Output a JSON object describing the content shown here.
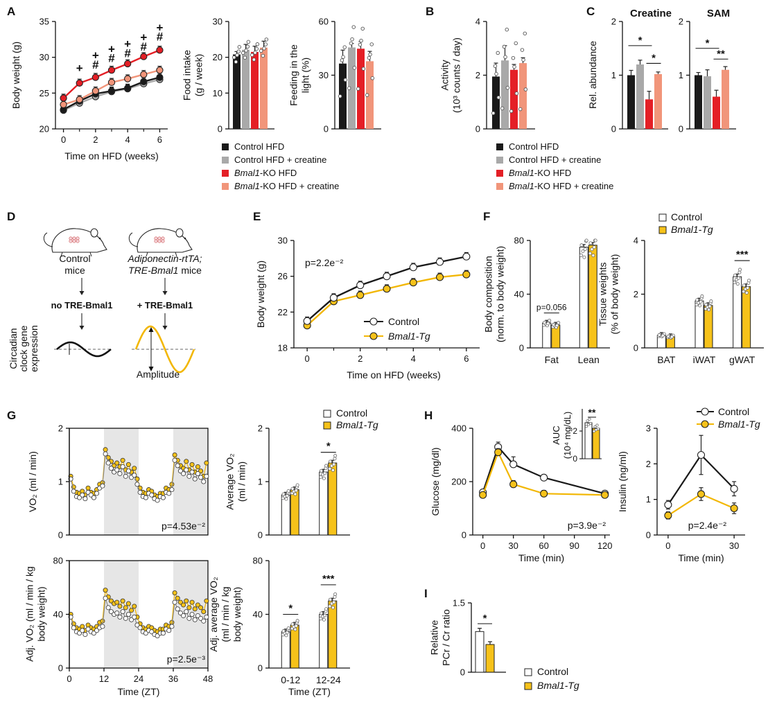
{
  "colors": {
    "control_hfd": "#1a1a1a",
    "control_creatine": "#a9a9a9",
    "ko_hfd": "#e41f26",
    "ko_creatine": "#f1957a",
    "control": "#ffffff",
    "tg": "#f6c21a",
    "tg_line": "#f2b705",
    "shade": "#e6e6e6"
  },
  "panels": {
    "a": "A",
    "b": "B",
    "c": "C",
    "d": "D",
    "e": "E",
    "f": "F",
    "g": "G",
    "h": "H",
    "i": "I"
  },
  "legend_creatine": [
    {
      "label": "Control HFD",
      "italic": "",
      "rest": "Control HFD",
      "color": "control_hfd"
    },
    {
      "label": "Control HFD + creatine",
      "italic": "",
      "rest": "Control HFD + creatine",
      "color": "control_creatine"
    },
    {
      "label": "Bmal1-KO HFD",
      "italic": "Bmal1",
      "rest": "-KO HFD",
      "color": "ko_hfd"
    },
    {
      "label": "Bmal1-KO HFD + creatine",
      "italic": "Bmal1",
      "rest": "-KO HFD + creatine",
      "color": "ko_creatine"
    }
  ],
  "legend_tg": {
    "control": "Control",
    "tg": "Bmal1-Tg"
  },
  "diagram": {
    "left_caption": [
      "Control",
      "mice"
    ],
    "right_caption_1": "Adiponectin-rtTA;",
    "right_caption_2a": "TRE-Bmal1",
    "right_caption_2b": " mice",
    "no_label": "no TRE-Bmal1",
    "plus_label": "+ TRE-Bmal1",
    "y_label": [
      "Circadian",
      "clock gene",
      "expression"
    ],
    "amplitude": "Amplitude"
  },
  "chart_data": [
    {
      "id": "A1",
      "type": "line",
      "title": "",
      "xlabel": "Time on HFD (weeks)",
      "ylabel": "Body weight (g)",
      "x": [
        0,
        1,
        2,
        3,
        4,
        5,
        6
      ],
      "xticks": [
        0,
        2,
        4,
        6
      ],
      "yticks": [
        20,
        25,
        30,
        35
      ],
      "ylim": [
        20,
        35
      ],
      "series": [
        {
          "name": "Control HFD",
          "color": "control_hfd",
          "values": [
            22.7,
            23.9,
            24.9,
            25.3,
            25.7,
            26.6,
            27.2
          ]
        },
        {
          "name": "Control HFD + creatine",
          "color": "control_creatine",
          "values": [
            22.6,
            23.6,
            24.5,
            25.2,
            25.6,
            26.3,
            26.9
          ]
        },
        {
          "name": "Bmal1-KO HFD",
          "color": "ko_hfd",
          "values": [
            24.3,
            26.4,
            27.2,
            28.2,
            29.1,
            30.1,
            31.0
          ]
        },
        {
          "name": "Bmal1-KO HFD + creatine",
          "color": "ko_creatine",
          "values": [
            23.4,
            24.1,
            25.3,
            26.5,
            27.0,
            27.6,
            28.2
          ]
        }
      ],
      "annotations": [
        {
          "x": 1,
          "y": 28.5,
          "text": "+"
        },
        {
          "x": 2,
          "y": 30.3,
          "text": "+"
        },
        {
          "x": 2,
          "y": 29.0,
          "text": "#"
        },
        {
          "x": 3,
          "y": 31.2,
          "text": "+"
        },
        {
          "x": 3,
          "y": 29.9,
          "text": "#"
        },
        {
          "x": 4,
          "y": 31.9,
          "text": "+"
        },
        {
          "x": 4,
          "y": 30.6,
          "text": "#"
        },
        {
          "x": 5,
          "y": 32.8,
          "text": "+"
        },
        {
          "x": 5,
          "y": 31.5,
          "text": "#"
        },
        {
          "x": 6,
          "y": 34.2,
          "text": "+"
        },
        {
          "x": 6,
          "y": 32.9,
          "text": "#"
        }
      ]
    },
    {
      "id": "A2",
      "type": "bar",
      "ylabel": [
        "Food intake",
        "(g / week)"
      ],
      "categories": [
        "Control HFD",
        "Control HFD + creatine",
        "Bmal1-KO HFD",
        "Bmal1-KO HFD + creatine"
      ],
      "values": [
        20.8,
        22.1,
        21.5,
        22.7
      ],
      "errors": [
        0.8,
        1.5,
        1.6,
        1.8
      ],
      "yticks": [
        0,
        10,
        20,
        30
      ],
      "ylim": [
        0,
        30
      ]
    },
    {
      "id": "A3",
      "type": "bar",
      "ylabel": [
        "Feeding in the",
        "light (%)"
      ],
      "categories": [
        "Control HFD",
        "Control HFD + creatine",
        "Bmal1-KO HFD",
        "Bmal1-KO HFD + creatine"
      ],
      "values": [
        36.5,
        45.5,
        44.8,
        37.8
      ],
      "errors": [
        7.5,
        2.2,
        4.0,
        5.5
      ],
      "yticks": [
        0,
        30,
        60
      ],
      "ylim": [
        0,
        60
      ]
    },
    {
      "id": "B",
      "type": "bar",
      "ylabel": [
        "Activity",
        "(10³ counts / day)"
      ],
      "categories": [
        "Control HFD",
        "Control HFD + creatine",
        "Bmal1-KO HFD",
        "Bmal1-KO HFD + creatine"
      ],
      "values": [
        1.95,
        2.55,
        2.2,
        2.45
      ],
      "errors": [
        0.5,
        0.55,
        0.2,
        0.2
      ],
      "yticks": [
        0,
        2,
        4
      ],
      "ylim": [
        0,
        4
      ]
    },
    {
      "id": "C1",
      "type": "bar",
      "title": "Creatine",
      "ylabel": "Rel. abundance",
      "categories": [
        "Control HFD",
        "Control HFD + creatine",
        "Bmal1-KO HFD",
        "Bmal1-KO HFD + creatine"
      ],
      "values": [
        1.0,
        1.2,
        0.55,
        1.02
      ],
      "errors": [
        0.09,
        0.08,
        0.15,
        0.04
      ],
      "yticks": [
        0,
        1,
        2
      ],
      "ylim": [
        0,
        2
      ],
      "brackets": [
        {
          "from": 0,
          "to": 2,
          "y": 1.55,
          "text": "*"
        },
        {
          "from": 2,
          "to": 3,
          "y": 1.22,
          "text": "*"
        }
      ]
    },
    {
      "id": "C2",
      "type": "bar",
      "title": "SAM",
      "categories": [
        "Control HFD",
        "Control HFD + creatine",
        "Bmal1-KO HFD",
        "Bmal1-KO HFD + creatine"
      ],
      "values": [
        1.0,
        0.98,
        0.6,
        1.1
      ],
      "errors": [
        0.05,
        0.12,
        0.12,
        0.06
      ],
      "yticks": [
        0,
        1,
        2
      ],
      "ylim": [
        0,
        2
      ],
      "brackets": [
        {
          "from": 0,
          "to": 2,
          "y": 1.5,
          "text": "*"
        },
        {
          "from": 2,
          "to": 3,
          "y": 1.3,
          "text": "**"
        }
      ]
    },
    {
      "id": "E",
      "type": "line",
      "xlabel": "Time on HFD (weeks)",
      "ylabel": "Body weight (g)",
      "x": [
        0,
        1,
        2,
        3,
        4,
        5,
        6
      ],
      "xticks": [
        0,
        2,
        4,
        6
      ],
      "yticks": [
        18,
        22,
        26,
        30
      ],
      "ylim": [
        18,
        30
      ],
      "pvalue": "p=2.2e⁻²",
      "series": [
        {
          "name": "Control",
          "color": "control",
          "values": [
            21.0,
            23.6,
            25.0,
            26.0,
            27.0,
            27.6,
            28.2
          ]
        },
        {
          "name": "Bmal1-Tg",
          "color": "tg",
          "values": [
            20.5,
            23.2,
            23.9,
            24.6,
            25.3,
            25.9,
            26.2
          ]
        }
      ]
    },
    {
      "id": "F1",
      "type": "bar",
      "ylabel": [
        "Body composition",
        "(norm. to body weight)"
      ],
      "categories": [
        "Fat",
        "Lean"
      ],
      "series": [
        {
          "name": "Control",
          "values": [
            18.5,
            75.0
          ]
        },
        {
          "name": "Bmal1-Tg",
          "values": [
            17.0,
            76.5
          ]
        }
      ],
      "yticks": [
        0,
        40,
        80
      ],
      "ylim": [
        0,
        80
      ],
      "brackets": [
        {
          "group": 0,
          "y": 26,
          "text": "p=0.056"
        }
      ]
    },
    {
      "id": "F2",
      "type": "bar",
      "ylabel": [
        "Tissue weights",
        "(% of body weight)"
      ],
      "categories": [
        "BAT",
        "iWAT",
        "gWAT"
      ],
      "series": [
        {
          "name": "Control",
          "values": [
            0.47,
            1.75,
            2.65
          ]
        },
        {
          "name": "Bmal1-Tg",
          "values": [
            0.42,
            1.58,
            2.28
          ]
        }
      ],
      "yticks": [
        0,
        2,
        4
      ],
      "ylim": [
        0,
        4
      ],
      "brackets": [
        {
          "group": 2,
          "y": 3.25,
          "text": "***"
        }
      ]
    },
    {
      "id": "G1",
      "type": "line",
      "ylabel": "VO₂ (ml / min)",
      "xlim": [
        0,
        48
      ],
      "yticks": [
        0,
        1,
        2
      ],
      "ylim": [
        0,
        2
      ],
      "pvalue": "p=4.53e⁻²",
      "dark_periods": [
        [
          12,
          24
        ],
        [
          36,
          48
        ]
      ],
      "x_step": 1,
      "series": [
        {
          "name": "Control",
          "color": "control",
          "values": [
            1.05,
            0.82,
            0.72,
            0.7,
            0.75,
            0.68,
            0.8,
            0.75,
            0.7,
            0.78,
            0.88,
            0.92,
            1.52,
            1.35,
            1.25,
            1.18,
            1.22,
            1.15,
            1.28,
            1.1,
            1.2,
            1.08,
            1.12,
            0.95,
            0.8,
            0.72,
            0.7,
            0.78,
            0.75,
            0.68,
            0.65,
            0.72,
            0.7,
            0.8,
            0.78,
            0.85,
            1.4,
            1.3,
            1.2,
            1.15,
            1.22,
            1.1,
            1.18,
            1.05,
            1.15,
            1.08,
            1.0,
            1.1
          ]
        },
        {
          "name": "Bmal1-Tg",
          "color": "tg",
          "values": [
            1.1,
            0.9,
            0.8,
            0.78,
            0.82,
            0.75,
            0.88,
            0.8,
            0.78,
            0.85,
            0.95,
            0.98,
            1.6,
            1.45,
            1.38,
            1.3,
            1.35,
            1.28,
            1.4,
            1.22,
            1.32,
            1.18,
            1.25,
            1.05,
            0.88,
            0.8,
            0.78,
            0.85,
            0.82,
            0.75,
            0.72,
            0.78,
            0.78,
            0.88,
            0.85,
            0.95,
            1.5,
            1.4,
            1.3,
            1.25,
            1.38,
            1.22,
            1.32,
            1.18,
            1.28,
            1.2,
            1.1,
            1.35
          ]
        }
      ]
    },
    {
      "id": "G2",
      "type": "bar",
      "ylabel": [
        "Average VO₂",
        "(ml / min)"
      ],
      "categories": [
        "0-12",
        "12-24"
      ],
      "series": [
        {
          "name": "Control",
          "values": [
            0.75,
            1.18
          ]
        },
        {
          "name": "Bmal1-Tg",
          "values": [
            0.85,
            1.35
          ]
        }
      ],
      "yticks": [
        0,
        1,
        2
      ],
      "ylim": [
        0,
        2
      ],
      "brackets": [
        {
          "group": 1,
          "y": 1.55,
          "text": "*"
        }
      ]
    },
    {
      "id": "G3",
      "type": "line",
      "xlabel": "Time (ZT)",
      "ylabel": [
        "Adj. VO₂ (ml / min / kg",
        "body weight)"
      ],
      "xticks": [
        0,
        12,
        24,
        36,
        48
      ],
      "xlim": [
        0,
        48
      ],
      "yticks": [
        0,
        40,
        80
      ],
      "ylim": [
        0,
        80
      ],
      "pvalue": "p=2.5e⁻³",
      "dark_periods": [
        [
          12,
          24
        ],
        [
          36,
          48
        ]
      ],
      "x_step": 1,
      "series": [
        {
          "name": "Control",
          "color": "control",
          "values": [
            38,
            30,
            27,
            26,
            28,
            25,
            29,
            27,
            26,
            28,
            30,
            31,
            52,
            45,
            42,
            40,
            41,
            38,
            42,
            37,
            40,
            36,
            38,
            32,
            30,
            27,
            26,
            28,
            27,
            25,
            24,
            26,
            26,
            29,
            28,
            31,
            49,
            44,
            41,
            39,
            42,
            37,
            40,
            36,
            39,
            37,
            35,
            38
          ]
        },
        {
          "name": "Bmal1-Tg",
          "color": "tg",
          "values": [
            40,
            33,
            30,
            29,
            31,
            28,
            32,
            30,
            29,
            31,
            34,
            35,
            58,
            53,
            50,
            48,
            49,
            46,
            50,
            45,
            48,
            43,
            46,
            38,
            33,
            30,
            29,
            31,
            30,
            28,
            27,
            29,
            29,
            32,
            31,
            34,
            56,
            52,
            49,
            47,
            50,
            45,
            49,
            44,
            47,
            45,
            42,
            50
          ]
        }
      ]
    },
    {
      "id": "G4",
      "type": "bar",
      "xlabel": "Time (ZT)",
      "ylabel": [
        "Adj. average VO₂",
        "(ml / min / kg",
        "body weight)"
      ],
      "categories": [
        "0-12",
        "12-24"
      ],
      "series": [
        {
          "name": "Control",
          "values": [
            27,
            40
          ]
        },
        {
          "name": "Bmal1-Tg",
          "values": [
            32,
            50
          ]
        }
      ],
      "yticks": [
        0,
        40,
        80
      ],
      "ylim": [
        0,
        80
      ],
      "brackets": [
        {
          "group": 0,
          "y": 40,
          "text": "*"
        },
        {
          "group": 1,
          "y": 62,
          "text": "***"
        }
      ]
    },
    {
      "id": "H1",
      "type": "line",
      "xlabel": "Time (min)",
      "ylabel": "Glucose (mg/dl)",
      "x": [
        0,
        15,
        30,
        60,
        120
      ],
      "xticks": [
        0,
        30,
        60,
        90,
        120
      ],
      "yticks": [
        0,
        200,
        400
      ],
      "ylim": [
        0,
        400
      ],
      "pvalue": "p=3.9e⁻²",
      "series": [
        {
          "name": "Control",
          "color": "control",
          "values": [
            160,
            330,
            265,
            215,
            155
          ]
        },
        {
          "name": "Bmal1-Tg",
          "color": "tg",
          "values": [
            150,
            310,
            190,
            155,
            150
          ]
        }
      ],
      "inset": {
        "ylabel": [
          "AUC",
          "(10⁴ mg/dL)"
        ],
        "values": [
          2.6,
          2.2
        ],
        "yticks": [
          0,
          2
        ],
        "ylim": [
          0,
          3.6
        ],
        "stars": "**"
      }
    },
    {
      "id": "H2",
      "type": "line",
      "xlabel": "Time (min)",
      "ylabel": "Insulin (ng/ml)",
      "x": [
        0,
        15,
        30
      ],
      "xticks": [
        0,
        30
      ],
      "yticks": [
        0,
        1,
        2,
        3
      ],
      "ylim": [
        0,
        3
      ],
      "pvalue": "p=2.4e⁻²",
      "series": [
        {
          "name": "Control",
          "color": "control",
          "values": [
            0.85,
            2.25,
            1.3
          ]
        },
        {
          "name": "Bmal1-Tg",
          "color": "tg",
          "values": [
            0.55,
            1.15,
            0.75
          ]
        }
      ]
    },
    {
      "id": "I",
      "type": "bar",
      "ylabel": [
        "Relative",
        "PCr / Cr ratio"
      ],
      "categories": [
        "Control",
        "Bmal1-Tg"
      ],
      "values": [
        0.88,
        0.6
      ],
      "errors": [
        0.07,
        0.06
      ],
      "yticks": [
        0,
        1.5
      ],
      "ylim": [
        0,
        1.5
      ],
      "brackets": [
        {
          "from": 0,
          "to": 1,
          "y": 1.05,
          "text": "*"
        }
      ]
    }
  ]
}
